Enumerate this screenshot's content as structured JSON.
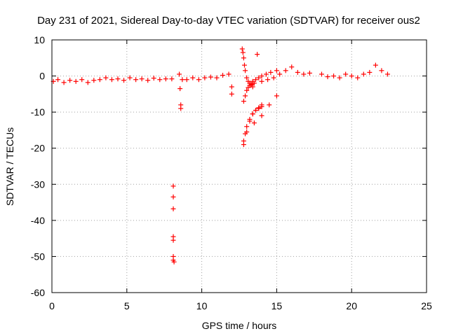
{
  "chart_data": {
    "type": "scatter",
    "title": "Day 231 of 2021, Sidereal Day-to-day VTEC variation (SDTVAR) for receiver ous2",
    "xlabel": "GPS time / hours",
    "ylabel": "SDTVAR / TECUs",
    "xlim": [
      0,
      25
    ],
    "ylim": [
      -60,
      10
    ],
    "xticks": [
      0,
      5,
      10,
      15,
      20,
      25
    ],
    "yticks": [
      10,
      0,
      -10,
      -20,
      -30,
      -40,
      -50,
      -60
    ],
    "xtick_labels": [
      "0",
      "5",
      "10",
      "15",
      "20",
      "25"
    ],
    "ytick_labels": [
      "10",
      "0",
      "-10",
      "-20",
      "-30",
      "-40",
      "-50",
      "-60"
    ],
    "grid": true,
    "marker": "+",
    "color": "#ff0000",
    "series": [
      {
        "name": "SDTVAR",
        "x": [
          0.1,
          0.4,
          0.8,
          1.2,
          1.6,
          2.0,
          2.4,
          2.8,
          3.2,
          3.6,
          4.0,
          4.4,
          4.8,
          5.2,
          5.6,
          6.0,
          6.4,
          6.8,
          7.2,
          7.6,
          8.0,
          8.1,
          8.1,
          8.1,
          8.1,
          8.1,
          8.1,
          8.1,
          8.15,
          8.5,
          8.55,
          8.6,
          8.6,
          8.7,
          9.0,
          9.4,
          9.8,
          10.2,
          10.6,
          11.0,
          11.4,
          11.8,
          12.0,
          12.0,
          12.7,
          12.75,
          12.8,
          12.85,
          12.9,
          13.0,
          13.1,
          13.2,
          13.3,
          13.4,
          12.8,
          12.9,
          13.0,
          13.1,
          13.2,
          13.3,
          13.4,
          13.5,
          12.8,
          13.0,
          13.2,
          13.4,
          13.6,
          13.8,
          14.0,
          12.8,
          12.9,
          13.0,
          13.2,
          13.4,
          13.6,
          13.8,
          14.0,
          13.5,
          14.0,
          14.5,
          15.0,
          13.4,
          13.6,
          13.8,
          14.0,
          14.3,
          14.6,
          15.0,
          13.7,
          14.0,
          14.4,
          14.8,
          15.2,
          15.6,
          16.0,
          16.4,
          16.8,
          17.2,
          18.0,
          18.4,
          18.8,
          19.2,
          19.6,
          20.0,
          20.4,
          20.8,
          21.2,
          21.6,
          22.0,
          22.4
        ],
        "y": [
          -1.5,
          -1.0,
          -1.8,
          -1.2,
          -1.5,
          -1.0,
          -1.8,
          -1.2,
          -1.0,
          -0.5,
          -1.0,
          -0.8,
          -1.2,
          -0.5,
          -1.0,
          -0.8,
          -1.2,
          -0.6,
          -1.0,
          -0.8,
          -0.8,
          -30.5,
          -33.5,
          -36.8,
          -44.5,
          -45.5,
          -50.0,
          -51.0,
          -51.5,
          0.5,
          -3.5,
          -8.0,
          -9.0,
          -1.0,
          -1.0,
          -0.5,
          -1.0,
          -0.5,
          -0.3,
          -0.5,
          0.2,
          0.5,
          -3.0,
          -5.0,
          7.5,
          6.5,
          5.0,
          3.0,
          1.5,
          -0.5,
          -1.5,
          -2.0,
          -2.5,
          -3.0,
          -7.0,
          -5.5,
          -4.0,
          -3.2,
          -2.6,
          -2.3,
          -2.0,
          -2.0,
          -19.0,
          -15.5,
          -12.5,
          -10.5,
          -9.5,
          -9.0,
          -8.5,
          -18.0,
          -16.0,
          -14.0,
          -12.0,
          -10.5,
          -9.5,
          -8.8,
          -8.0,
          -13.0,
          -11.0,
          -8.0,
          -5.5,
          -1.5,
          -1.0,
          -0.5,
          0.0,
          0.5,
          1.0,
          1.5,
          6.0,
          -1.5,
          -1.0,
          -0.5,
          0.5,
          1.5,
          2.5,
          1.0,
          0.5,
          0.8,
          0.5,
          -0.2,
          0.0,
          -0.5,
          0.5,
          0.0,
          -0.5,
          0.5,
          1.0,
          3.0,
          1.5,
          0.5
        ]
      }
    ]
  }
}
